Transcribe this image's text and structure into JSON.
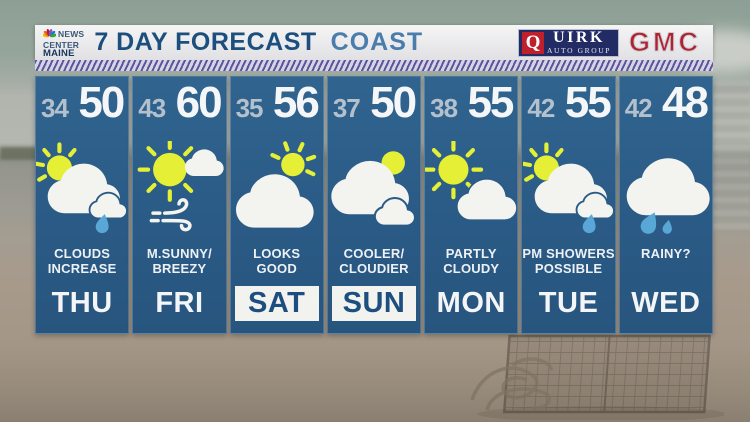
{
  "branding": {
    "station": {
      "peacock_icon": "nbc-peacock-icon",
      "lines": [
        "NEWS",
        "CENTER",
        "MAINE"
      ]
    },
    "sponsors": {
      "quirk": {
        "q": "Q",
        "name_rest": "UIRK",
        "sub": "AUTO GROUP"
      },
      "gmc": "GMC"
    }
  },
  "header": {
    "title": "7 DAY FORECAST",
    "region": "COAST"
  },
  "colors": {
    "panel_blue": "#2a5b86",
    "sun_yellow": "#e4ef35",
    "rain_blue": "#58a7d7",
    "cloud_white": "#f3f3ef",
    "navy_text": "#1d4f7e",
    "region_blue": "#4a7dac",
    "low_temp_gray": "#b4c1cd",
    "highlight_bg": "#f2f2ef"
  },
  "forecast": {
    "days": [
      {
        "day": "THU",
        "low": "34",
        "high": "50",
        "condition_line1": "CLOUDS",
        "condition_line2": "INCREASE",
        "icon": "sun-cloud-rain-icon",
        "highlighted": false
      },
      {
        "day": "FRI",
        "low": "43",
        "high": "60",
        "condition_line1": "M.SUNNY/",
        "condition_line2": "BREEZY",
        "icon": "sun-breezy-icon",
        "highlighted": false
      },
      {
        "day": "SAT",
        "low": "35",
        "high": "56",
        "condition_line1": "LOOKS",
        "condition_line2": "GOOD",
        "icon": "cloud-sun-icon",
        "highlighted": true
      },
      {
        "day": "SUN",
        "low": "37",
        "high": "50",
        "condition_line1": "COOLER/",
        "condition_line2": "CLOUDIER",
        "icon": "clouds-sun-icon",
        "highlighted": true
      },
      {
        "day": "MON",
        "low": "38",
        "high": "55",
        "condition_line1": "PARTLY",
        "condition_line2": "CLOUDY",
        "icon": "sun-cloud-icon",
        "highlighted": false
      },
      {
        "day": "TUE",
        "low": "42",
        "high": "55",
        "condition_line1": "PM SHOWERS",
        "condition_line2": "POSSIBLE",
        "icon": "sun-cloud-rain-icon",
        "highlighted": false
      },
      {
        "day": "WED",
        "low": "42",
        "high": "48",
        "condition_line1": "RAINY?",
        "condition_line2": "",
        "icon": "rain-cloud-icon",
        "highlighted": false
      }
    ]
  }
}
